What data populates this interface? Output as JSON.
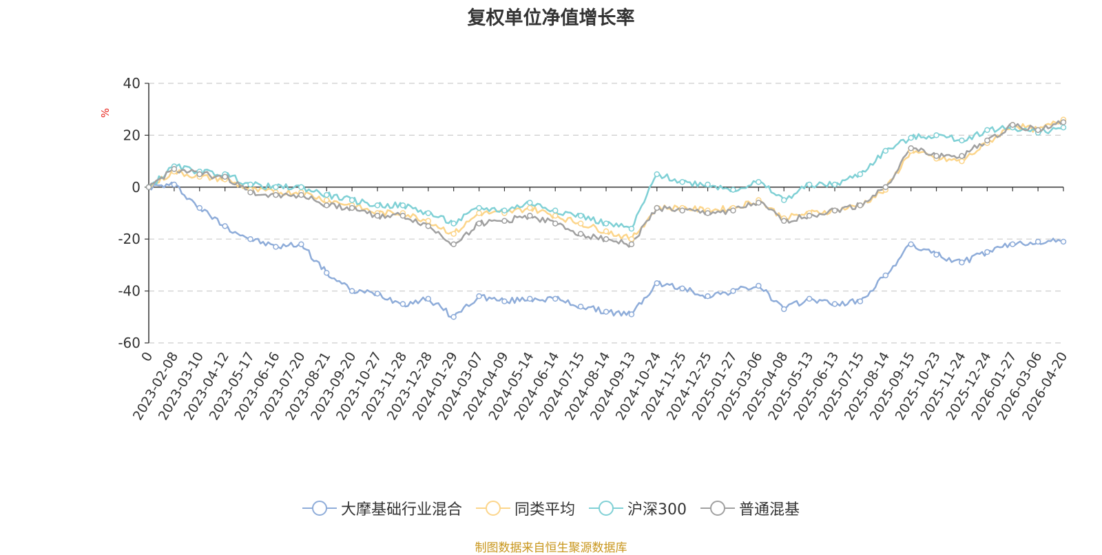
{
  "chart_data": {
    "type": "line",
    "title": "复权单位净值增长率",
    "ylabel": "%",
    "ylim": [
      -60,
      40
    ],
    "yticks": [
      40,
      20,
      0,
      -20,
      -40,
      -60
    ],
    "x_tick_labels": [
      "0",
      "2023-02-08",
      "2023-03-10",
      "2023-04-12",
      "2023-05-17",
      "2023-06-16",
      "2023-07-20",
      "2023-08-21",
      "2023-09-20",
      "2023-10-27",
      "2023-11-28",
      "2023-12-28",
      "2024-01-29",
      "2024-03-07",
      "2024-04-09",
      "2024-05-14",
      "2024-06-14",
      "2024-07-15",
      "2024-08-14",
      "2024-09-13",
      "2024-10-24",
      "2024-11-25",
      "2024-12-25",
      "2025-01-27",
      "2025-03-06",
      "2025-04-08",
      "2025-05-13",
      "2025-06-13",
      "2025-07-15",
      "2025-08-14",
      "2025-09-15",
      "2025-10-23",
      "2025-11-24",
      "2025-12-24",
      "2026-01-27",
      "2026-03-06",
      "2026-04-20"
    ],
    "grid": "horizontal-dashed",
    "legend_position": "bottom",
    "series": [
      {
        "name": "大摩基础行业混合",
        "color": "#8eacd9",
        "values": [
          0,
          1,
          -8,
          -15,
          -20,
          -23,
          -22,
          -33,
          -40,
          -41,
          -45,
          -43,
          -50,
          -42,
          -44,
          -43,
          -43,
          -46,
          -48,
          -49,
          -37,
          -39,
          -42,
          -40,
          -38,
          -47,
          -43,
          -45,
          -44,
          -34,
          -22,
          -26,
          -29,
          -25,
          -22,
          -21,
          -21
        ]
      },
      {
        "name": "同类平均",
        "color": "#fcd58a",
        "values": [
          0,
          6,
          4,
          3,
          -1,
          -2,
          -2,
          -5,
          -7,
          -10,
          -10,
          -13,
          -18,
          -10,
          -10,
          -8,
          -11,
          -14,
          -17,
          -20,
          -8,
          -8,
          -9,
          -8,
          -5,
          -12,
          -10,
          -9,
          -7,
          -1,
          14,
          11,
          10,
          17,
          24,
          22,
          26
        ]
      },
      {
        "name": "沪深300",
        "color": "#7fd0d5",
        "values": [
          0,
          8,
          6,
          5,
          1,
          0,
          0,
          -3,
          -5,
          -7,
          -7,
          -10,
          -14,
          -8,
          -9,
          -6,
          -9,
          -11,
          -14,
          -16,
          5,
          2,
          1,
          -1,
          2,
          -5,
          1,
          1,
          5,
          14,
          19,
          20,
          18,
          22,
          23,
          21,
          23
        ]
      },
      {
        "name": "普通混基",
        "color": "#a0a0a0",
        "values": [
          0,
          7,
          5,
          4,
          -2,
          -3,
          -3,
          -7,
          -8,
          -11,
          -11,
          -15,
          -22,
          -14,
          -13,
          -11,
          -14,
          -18,
          -20,
          -22,
          -8,
          -9,
          -10,
          -9,
          -6,
          -13,
          -11,
          -9,
          -7,
          0,
          15,
          12,
          12,
          18,
          24,
          22,
          25
        ]
      }
    ]
  },
  "legend": {
    "items": [
      {
        "label": "大摩基础行业混合"
      },
      {
        "label": "同类平均"
      },
      {
        "label": "沪深300"
      },
      {
        "label": "普通混基"
      }
    ]
  },
  "source": "制图数据来自恒生聚源数据库"
}
